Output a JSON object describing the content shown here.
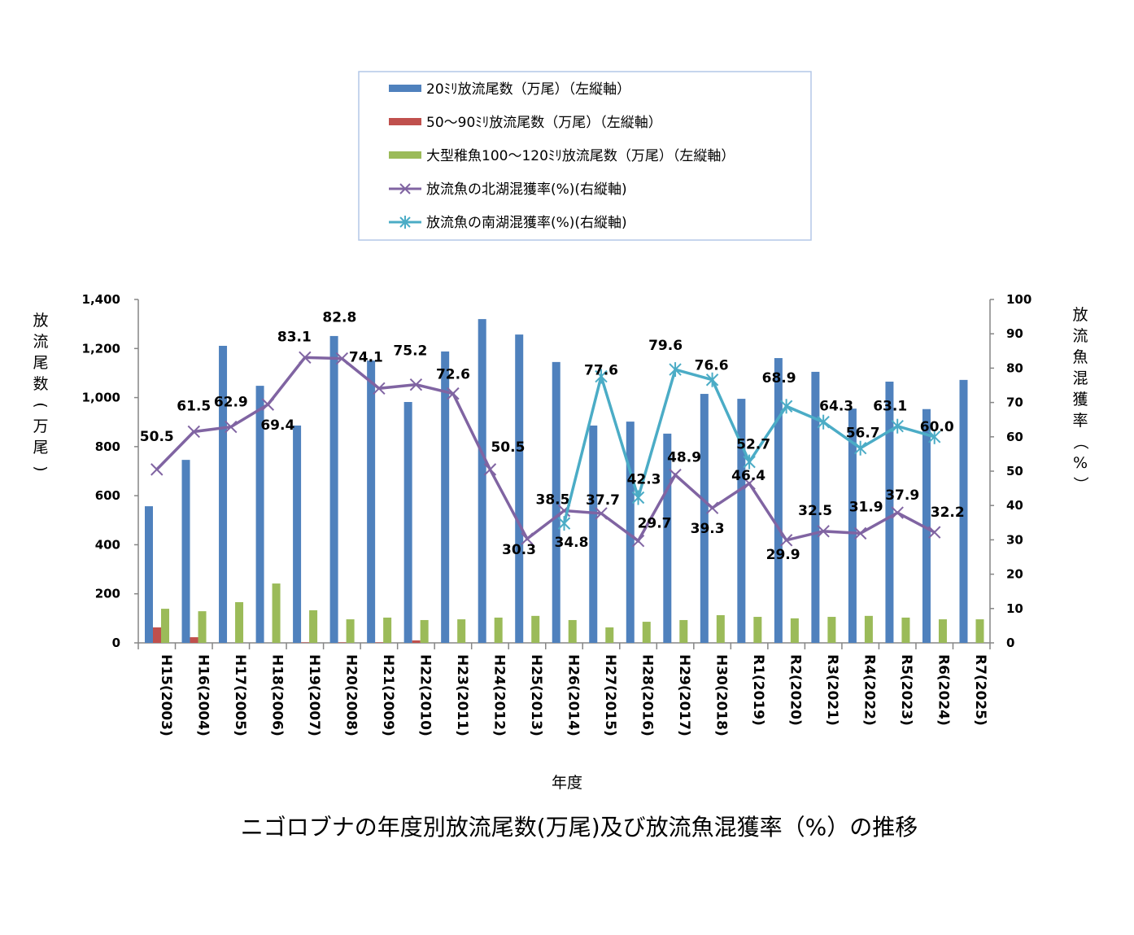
{
  "chart_data": {
    "type": "bar+line",
    "title": "ニゴロブナの年度別放流尾数(万尾)及び放流魚混獲率（%）の推移",
    "xlabel": "年度",
    "ylabel_left": "放流尾数(万尾)",
    "ylabel_right": "放流魚混獲率（%）",
    "ylim_left": [
      0,
      1400
    ],
    "ylim_right": [
      0,
      100
    ],
    "yticks_left": [
      "0",
      "200",
      "400",
      "600",
      "800",
      "1,000",
      "1,200",
      "1,400"
    ],
    "yticks_right": [
      "0",
      "10",
      "20",
      "30",
      "40",
      "50",
      "60",
      "70",
      "80",
      "90",
      "100"
    ],
    "grid": false,
    "legend_position": "top",
    "categories": [
      "H15(2003)",
      "H16(2004)",
      "H17(2005)",
      "H18(2006)",
      "H19(2007)",
      "H20(2008)",
      "H21(2009)",
      "H22(2010)",
      "H23(2011)",
      "H24(2012)",
      "H25(2013)",
      "H26(2014)",
      "H27(2015)",
      "H28(2016)",
      "H29(2017)",
      "H30(2018)",
      "R1(2019)",
      "R2(2020)",
      "R3(2021)",
      "R4(2022)",
      "R5(2023)",
      "R6(2024)",
      "R7(2025)"
    ],
    "series": [
      {
        "name": "20ﾐﾘ放流尾数（万尾）（左縦軸）",
        "type": "bar",
        "axis": "left",
        "color": "#4f81bd",
        "values": [
          557,
          746,
          1211,
          1048,
          886,
          1251,
          1151,
          982,
          1188,
          1320,
          1257,
          1145,
          886,
          902,
          853,
          1015,
          995,
          1161,
          1105,
          955,
          1065,
          953,
          1072
        ]
      },
      {
        "name": "50～90ﾐﾘ放流尾数（万尾）（左縦軸）",
        "type": "bar",
        "axis": "left",
        "color": "#c0504d",
        "values": [
          63,
          23,
          0,
          0,
          2,
          2,
          2,
          10,
          0,
          0,
          0,
          0,
          0,
          0,
          0,
          0,
          0,
          0,
          0,
          0,
          0,
          0,
          0
        ]
      },
      {
        "name": "大型稚魚100～120ﾐﾘ放流尾数（万尾）（左縦軸）",
        "type": "bar",
        "axis": "left",
        "color": "#9bbb59",
        "values": [
          139,
          129,
          166,
          242,
          133,
          96,
          103,
          93,
          96,
          103,
          110,
          93,
          63,
          86,
          93,
          113,
          106,
          100,
          106,
          110,
          103,
          96,
          96
        ]
      },
      {
        "name": "放流魚の北湖混獲率(%)(右縦軸)",
        "type": "line",
        "axis": "right",
        "color": "#8064a2",
        "marker": "x",
        "values": [
          50.5,
          61.5,
          62.9,
          69.4,
          83.1,
          82.8,
          74.1,
          75.2,
          72.6,
          50.5,
          30.3,
          38.5,
          37.7,
          29.7,
          48.9,
          39.3,
          46.4,
          29.9,
          32.5,
          31.9,
          37.9,
          32.2,
          null
        ],
        "labels": [
          "50.5",
          "61.5",
          "62.9",
          "69.4",
          "83.1",
          "82.8",
          "74.1",
          "75.2",
          "72.6",
          "50.5",
          "30.3",
          "38.5",
          "37.7",
          "29.7",
          "48.9",
          "39.3",
          "46.4",
          "29.9",
          "32.5",
          "31.9",
          "37.9",
          "32.2",
          null
        ]
      },
      {
        "name": "放流魚の南湖混獲率(%)(右縦軸)",
        "type": "line",
        "axis": "right",
        "color": "#4bacc6",
        "marker": "asterisk",
        "values": [
          null,
          null,
          null,
          null,
          null,
          null,
          null,
          null,
          null,
          null,
          null,
          34.8,
          77.6,
          42.3,
          79.6,
          76.6,
          52.7,
          68.9,
          64.3,
          56.7,
          63.1,
          60.0,
          null
        ],
        "labels": [
          null,
          null,
          null,
          null,
          null,
          null,
          null,
          null,
          null,
          null,
          null,
          "34.8",
          "77.6",
          "42.3",
          "79.6",
          "76.6",
          "52.7",
          "68.9",
          "64.3",
          "56.7",
          "63.1",
          "60.0",
          null
        ]
      }
    ]
  }
}
